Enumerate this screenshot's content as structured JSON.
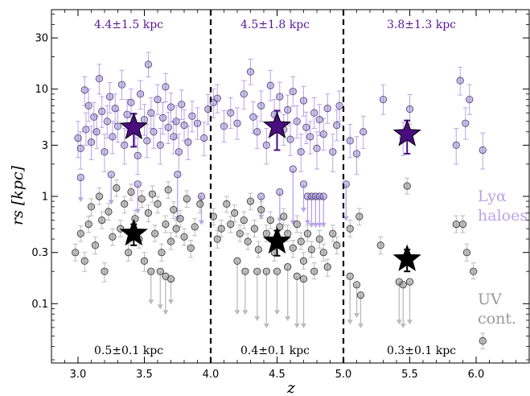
{
  "chart_data": {
    "type": "scatter",
    "xlabel": "z",
    "ylabel": "rs [kpc]",
    "xlim": [
      2.8,
      6.4
    ],
    "ylim": [
      0.028,
      55
    ],
    "yscale": "log",
    "xticks": [
      3.0,
      3.5,
      4.0,
      4.5,
      5.0,
      5.5,
      6.0
    ],
    "xtick_labels": [
      "3.0",
      "3.5",
      "4.0",
      "4.5",
      "5.0",
      "5.5",
      "6.0"
    ],
    "yticks": [
      0.1,
      0.3,
      1,
      3,
      10,
      30
    ],
    "ytick_labels": [
      "0.1",
      "0.3",
      "1",
      "3",
      "10",
      "30"
    ],
    "bin_edges": [
      4.0,
      5.0
    ],
    "colors": {
      "lya": "#b9a4e8",
      "lya_star": "#4a0d80",
      "lya_text": "#5a1596",
      "uv": "#777777",
      "uv_star": "#000000",
      "uv_text": "#000000",
      "uv_label": "#999999"
    },
    "lya_bin_labels": [
      "4.4±1.5 kpc",
      "4.5±1.8 kpc",
      "3.8±1.3 kpc"
    ],
    "uv_bin_labels": [
      "0.5±0.1 kpc",
      "0.4±0.1 kpc",
      "0.3±0.1 kpc"
    ],
    "legend_lya": [
      "Lyα",
      "haloes"
    ],
    "legend_uv": [
      "UV",
      "cont."
    ],
    "medians": {
      "lya": [
        {
          "x": 3.42,
          "y": 4.4,
          "lo": 2.9,
          "hi": 5.9
        },
        {
          "x": 4.5,
          "y": 4.5,
          "lo": 2.7,
          "hi": 6.3
        },
        {
          "x": 5.48,
          "y": 3.8,
          "lo": 2.5,
          "hi": 5.1
        }
      ],
      "uv": [
        {
          "x": 3.42,
          "y": 0.45,
          "lo": 0.35,
          "hi": 0.55
        },
        {
          "x": 4.5,
          "y": 0.38,
          "lo": 0.28,
          "hi": 0.48
        },
        {
          "x": 5.48,
          "y": 0.26,
          "lo": 0.2,
          "hi": 0.32
        }
      ]
    },
    "series": [
      {
        "name": "Lyα haloes",
        "points": [
          [
            3.0,
            3.5,
            2.3,
            5.0
          ],
          [
            3.02,
            2.8,
            1.8,
            4.0
          ],
          [
            3.05,
            9.8,
            7.0,
            13
          ],
          [
            3.06,
            4.2,
            3.0,
            6.0
          ],
          [
            3.08,
            7.0,
            5.0,
            10
          ],
          [
            3.1,
            3.2,
            2.2,
            4.5
          ],
          [
            3.12,
            5.5,
            4.0,
            7.5
          ],
          [
            3.14,
            4.0,
            2.8,
            5.6
          ],
          [
            3.16,
            12.5,
            9.0,
            17
          ],
          [
            3.18,
            6.2,
            4.4,
            8.5
          ],
          [
            3.2,
            2.6,
            1.7,
            3.8
          ],
          [
            3.22,
            5.0,
            3.5,
            7.0
          ],
          [
            3.24,
            8.5,
            6.0,
            11.5
          ],
          [
            3.26,
            3.6,
            2.5,
            5.0
          ],
          [
            3.28,
            6.6,
            4.8,
            9.0
          ],
          [
            3.3,
            4.5,
            3.2,
            6.3
          ],
          [
            3.33,
            11.0,
            8.0,
            15
          ],
          [
            3.35,
            3.0,
            2.0,
            4.3
          ],
          [
            3.37,
            5.8,
            4.1,
            8.0
          ],
          [
            3.4,
            7.5,
            5.4,
            10
          ],
          [
            3.43,
            4.2,
            3.0,
            5.8
          ],
          [
            3.45,
            2.4,
            1.6,
            3.5
          ],
          [
            3.47,
            9.0,
            6.5,
            12
          ],
          [
            3.5,
            5.2,
            3.7,
            7.2
          ],
          [
            3.52,
            3.3,
            2.3,
            4.7
          ],
          [
            3.53,
            17,
            13,
            22
          ],
          [
            3.55,
            6.0,
            4.3,
            8.3
          ],
          [
            3.57,
            4.0,
            2.8,
            5.6
          ],
          [
            3.6,
            8.0,
            5.8,
            11
          ],
          [
            3.62,
            3.0,
            2.0,
            4.3
          ],
          [
            3.64,
            5.4,
            3.8,
            7.5
          ],
          [
            3.66,
            10.5,
            7.6,
            14
          ],
          [
            3.68,
            4.4,
            3.1,
            6.1
          ],
          [
            3.7,
            6.8,
            4.9,
            9.2
          ],
          [
            3.72,
            3.6,
            2.5,
            5.0
          ],
          [
            3.74,
            5.0,
            3.5,
            7.0
          ],
          [
            3.76,
            2.6,
            1.7,
            3.8
          ],
          [
            3.78,
            7.2,
            5.2,
            9.8
          ],
          [
            3.8,
            4.6,
            3.3,
            6.4
          ],
          [
            3.83,
            3.2,
            2.2,
            4.5
          ],
          [
            3.86,
            5.6,
            4.0,
            7.7
          ],
          [
            3.9,
            4.8,
            3.4,
            6.7
          ],
          [
            3.95,
            3.5,
            2.4,
            4.9
          ],
          [
            3.98,
            6.5,
            4.7,
            8.9
          ],
          [
            4.02,
            7.5,
            5.4,
            10
          ],
          [
            4.05,
            8.2,
            6.0,
            11
          ],
          [
            4.1,
            4.5,
            3.2,
            6.3
          ],
          [
            4.15,
            6.0,
            4.3,
            8.3
          ],
          [
            4.2,
            4.8,
            3.4,
            6.7
          ],
          [
            4.25,
            9.0,
            6.5,
            12
          ],
          [
            4.3,
            14.5,
            11,
            19
          ],
          [
            4.32,
            5.5,
            3.9,
            7.6
          ],
          [
            4.35,
            4.0,
            2.8,
            5.6
          ],
          [
            4.38,
            7.0,
            5.0,
            9.6
          ],
          [
            4.42,
            3.0,
            2.0,
            4.3
          ],
          [
            4.45,
            10.8,
            7.8,
            15
          ],
          [
            4.48,
            5.8,
            4.1,
            8.0
          ],
          [
            4.52,
            8.5,
            6.1,
            11.6
          ],
          [
            4.55,
            4.2,
            3.0,
            5.8
          ],
          [
            4.58,
            6.4,
            4.6,
            8.8
          ],
          [
            4.6,
            3.4,
            2.4,
            4.8
          ],
          [
            4.62,
            9.5,
            6.9,
            13
          ],
          [
            4.65,
            5.0,
            3.5,
            7.0
          ],
          [
            4.68,
            2.6,
            1.7,
            3.8
          ],
          [
            4.7,
            7.8,
            5.6,
            10.6
          ],
          [
            4.72,
            4.4,
            3.1,
            6.1
          ],
          [
            4.75,
            3.6,
            2.5,
            5.0
          ],
          [
            4.78,
            6.0,
            4.3,
            8.3
          ],
          [
            4.8,
            2.8,
            1.8,
            4.0
          ],
          [
            4.82,
            5.2,
            3.7,
            7.2
          ],
          [
            4.85,
            3.8,
            2.7,
            5.3
          ],
          [
            4.88,
            6.6,
            4.8,
            9.0
          ],
          [
            4.92,
            2.6,
            1.7,
            3.8
          ],
          [
            4.95,
            4.6,
            3.3,
            6.4
          ],
          [
            4.97,
            7.0,
            5.0,
            9.6
          ],
          [
            5.05,
            3.3,
            2.3,
            4.7
          ],
          [
            5.1,
            2.5,
            1.6,
            3.6
          ],
          [
            5.15,
            4.0,
            2.8,
            5.6
          ],
          [
            5.3,
            8.0,
            5.8,
            11
          ],
          [
            5.45,
            3.5,
            2.4,
            4.9
          ],
          [
            5.5,
            6.5,
            4.7,
            8.9
          ],
          [
            5.85,
            3.0,
            2.0,
            4.3
          ],
          [
            5.88,
            12.0,
            8.8,
            16
          ],
          [
            5.92,
            4.8,
            3.4,
            6.7
          ],
          [
            5.95,
            8.0,
            5.8,
            11
          ],
          [
            6.05,
            2.7,
            1.8,
            3.9
          ]
        ],
        "upper_limits": [
          [
            3.02,
            1.5,
            0.9
          ],
          [
            3.25,
            1.6,
            0.85
          ],
          [
            3.45,
            1.3,
            0.7
          ],
          [
            3.75,
            1.6,
            0.6
          ],
          [
            3.93,
            1.0,
            0.55
          ],
          [
            4.38,
            1.0,
            0.62
          ],
          [
            4.52,
            1.1,
            0.58
          ],
          [
            4.62,
            1.8,
            0.55
          ],
          [
            4.7,
            1.3,
            0.72
          ],
          [
            4.73,
            1.0,
            0.55
          ],
          [
            4.76,
            1.0,
            0.52
          ],
          [
            4.79,
            1.0,
            0.52
          ],
          [
            4.82,
            1.0,
            0.52
          ],
          [
            4.85,
            1.0,
            0.52
          ],
          [
            5.02,
            1.3,
            0.6
          ]
        ]
      },
      {
        "name": "UV cont.",
        "points": [
          [
            2.98,
            0.3,
            0.25,
            0.36
          ],
          [
            3.02,
            0.45,
            0.38,
            0.53
          ],
          [
            3.05,
            0.25,
            0.2,
            0.3
          ],
          [
            3.08,
            0.55,
            0.46,
            0.65
          ],
          [
            3.1,
            0.8,
            0.66,
            0.95
          ],
          [
            3.13,
            0.35,
            0.29,
            0.42
          ],
          [
            3.16,
            1.0,
            0.84,
            1.2
          ],
          [
            3.18,
            0.6,
            0.5,
            0.72
          ],
          [
            3.2,
            0.2,
            0.16,
            0.24
          ],
          [
            3.23,
            0.72,
            0.6,
            0.86
          ],
          [
            3.26,
            0.42,
            0.35,
            0.5
          ],
          [
            3.29,
            1.2,
            1.0,
            1.43
          ],
          [
            3.32,
            0.5,
            0.42,
            0.6
          ],
          [
            3.35,
            0.85,
            0.7,
            1.0
          ],
          [
            3.38,
            0.3,
            0.25,
            0.36
          ],
          [
            3.4,
            1.1,
            0.92,
            1.3
          ],
          [
            3.43,
            0.62,
            0.52,
            0.74
          ],
          [
            3.46,
            0.4,
            0.33,
            0.48
          ],
          [
            3.48,
            0.95,
            0.79,
            1.13
          ],
          [
            3.5,
            0.25,
            0.2,
            0.3
          ],
          [
            3.53,
            0.7,
            0.58,
            0.83
          ],
          [
            3.56,
            1.05,
            0.88,
            1.25
          ],
          [
            3.58,
            0.45,
            0.38,
            0.54
          ],
          [
            3.6,
            0.85,
            0.7,
            1.0
          ],
          [
            3.63,
            0.3,
            0.25,
            0.36
          ],
          [
            3.66,
            0.55,
            0.46,
            0.66
          ],
          [
            3.68,
            1.15,
            0.96,
            1.37
          ],
          [
            3.7,
            0.38,
            0.32,
            0.46
          ],
          [
            3.72,
            0.75,
            0.62,
            0.89
          ],
          [
            3.74,
            0.5,
            0.42,
            0.6
          ],
          [
            3.77,
            0.62,
            0.52,
            0.74
          ],
          [
            3.8,
            0.42,
            0.35,
            0.5
          ],
          [
            3.82,
            0.95,
            0.79,
            1.13
          ],
          [
            3.85,
            0.33,
            0.27,
            0.39
          ],
          [
            3.88,
            0.52,
            0.43,
            0.62
          ],
          [
            3.92,
            0.85,
            0.7,
            1.0
          ],
          [
            4.02,
            0.65,
            0.54,
            0.77
          ],
          [
            4.05,
            0.4,
            0.33,
            0.48
          ],
          [
            4.08,
            0.5,
            0.42,
            0.6
          ],
          [
            4.12,
            0.85,
            0.71,
            1.0
          ],
          [
            4.15,
            0.55,
            0.46,
            0.65
          ],
          [
            4.18,
            0.7,
            0.58,
            0.83
          ],
          [
            4.22,
            0.45,
            0.38,
            0.54
          ],
          [
            4.25,
            0.6,
            0.5,
            0.72
          ],
          [
            4.28,
            0.38,
            0.32,
            0.45
          ],
          [
            4.3,
            0.9,
            0.75,
            1.07
          ],
          [
            4.33,
            0.5,
            0.42,
            0.6
          ],
          [
            4.36,
            0.32,
            0.27,
            0.38
          ],
          [
            4.38,
            0.75,
            0.62,
            0.89
          ],
          [
            4.42,
            0.45,
            0.38,
            0.54
          ],
          [
            4.45,
            0.6,
            0.5,
            0.72
          ],
          [
            4.48,
            0.3,
            0.25,
            0.36
          ],
          [
            4.52,
            0.52,
            0.43,
            0.62
          ],
          [
            4.55,
            0.65,
            0.54,
            0.77
          ],
          [
            4.58,
            0.45,
            0.38,
            0.54
          ],
          [
            4.62,
            0.33,
            0.27,
            0.39
          ],
          [
            4.65,
            0.55,
            0.46,
            0.66
          ],
          [
            4.68,
            0.38,
            0.32,
            0.46
          ],
          [
            4.7,
            0.25,
            0.21,
            0.3
          ],
          [
            4.73,
            0.45,
            0.38,
            0.54
          ],
          [
            4.76,
            0.32,
            0.27,
            0.38
          ],
          [
            4.78,
            0.2,
            0.17,
            0.24
          ],
          [
            4.82,
            0.4,
            0.33,
            0.48
          ],
          [
            4.85,
            0.3,
            0.25,
            0.36
          ],
          [
            4.88,
            0.22,
            0.18,
            0.26
          ],
          [
            4.92,
            0.45,
            0.38,
            0.54
          ],
          [
            4.95,
            0.35,
            0.29,
            0.42
          ],
          [
            5.05,
            0.5,
            0.42,
            0.6
          ],
          [
            5.12,
            0.65,
            0.54,
            0.77
          ],
          [
            5.28,
            0.35,
            0.29,
            0.42
          ],
          [
            5.48,
            1.25,
            1.05,
            1.48
          ],
          [
            5.85,
            0.55,
            0.46,
            0.66
          ],
          [
            5.9,
            0.55,
            0.46,
            0.66
          ],
          [
            5.93,
            0.3,
            0.25,
            0.36
          ],
          [
            5.98,
            0.2,
            0.17,
            0.24
          ],
          [
            6.05,
            0.045,
            0.038,
            0.053
          ]
        ],
        "upper_limits": [
          [
            3.55,
            0.2,
            0.1
          ],
          [
            3.62,
            0.2,
            0.09
          ],
          [
            3.66,
            0.18,
            0.08
          ],
          [
            3.7,
            0.17,
            0.1
          ],
          [
            4.2,
            0.25,
            0.08
          ],
          [
            4.26,
            0.2,
            0.08
          ],
          [
            4.35,
            0.2,
            0.07
          ],
          [
            4.42,
            0.2,
            0.06
          ],
          [
            4.5,
            0.2,
            0.08
          ],
          [
            4.58,
            0.22,
            0.07
          ],
          [
            4.65,
            0.18,
            0.06
          ],
          [
            4.7,
            0.17,
            0.06
          ],
          [
            5.05,
            0.18,
            0.065
          ],
          [
            5.1,
            0.15,
            0.075
          ],
          [
            5.13,
            0.12,
            0.06
          ],
          [
            5.42,
            0.16,
            0.065
          ],
          [
            5.45,
            0.15,
            0.06
          ],
          [
            5.5,
            0.16,
            0.065
          ]
        ]
      }
    ]
  }
}
